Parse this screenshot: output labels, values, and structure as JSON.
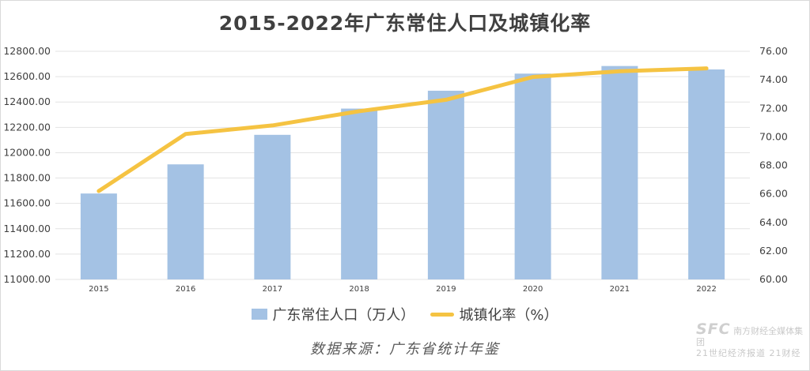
{
  "colors": {
    "bar": "#a4c2e4",
    "line": "#f5c342",
    "grid": "#e3e3e3",
    "text": "#404040"
  },
  "chart_data": {
    "type": "bar",
    "title": "2015-2022年广东常住人口及城镇化率",
    "categories": [
      "2015",
      "2016",
      "2017",
      "2018",
      "2019",
      "2020",
      "2021",
      "2022"
    ],
    "series": [
      {
        "name": "广东常住人口（万人）",
        "type": "bar",
        "axis": "left",
        "values": [
          11678,
          11908,
          12141,
          12348,
          12489,
          12624,
          12684,
          12657
        ]
      },
      {
        "name": "城镇化率（%）",
        "type": "line",
        "axis": "right",
        "values": [
          66.2,
          70.2,
          70.8,
          71.8,
          72.6,
          74.2,
          74.6,
          74.8
        ]
      }
    ],
    "y_left": {
      "min": 11000,
      "max": 12800,
      "ticks": [
        "11000.00",
        "11200.00",
        "11400.00",
        "11600.00",
        "11800.00",
        "12000.00",
        "12200.00",
        "12400.00",
        "12600.00",
        "12800.00"
      ]
    },
    "y_right": {
      "min": 60,
      "max": 76,
      "ticks": [
        "60.00",
        "62.00",
        "64.00",
        "66.00",
        "68.00",
        "70.00",
        "72.00",
        "74.00",
        "76.00"
      ]
    },
    "grid": true,
    "legend_position": "bottom"
  },
  "source_note": "数据来源：广东省统计年鉴",
  "watermark": {
    "logo": "SFC",
    "org": "南方财经全媒体集团",
    "sub": "21世纪经济报道 21财经"
  }
}
